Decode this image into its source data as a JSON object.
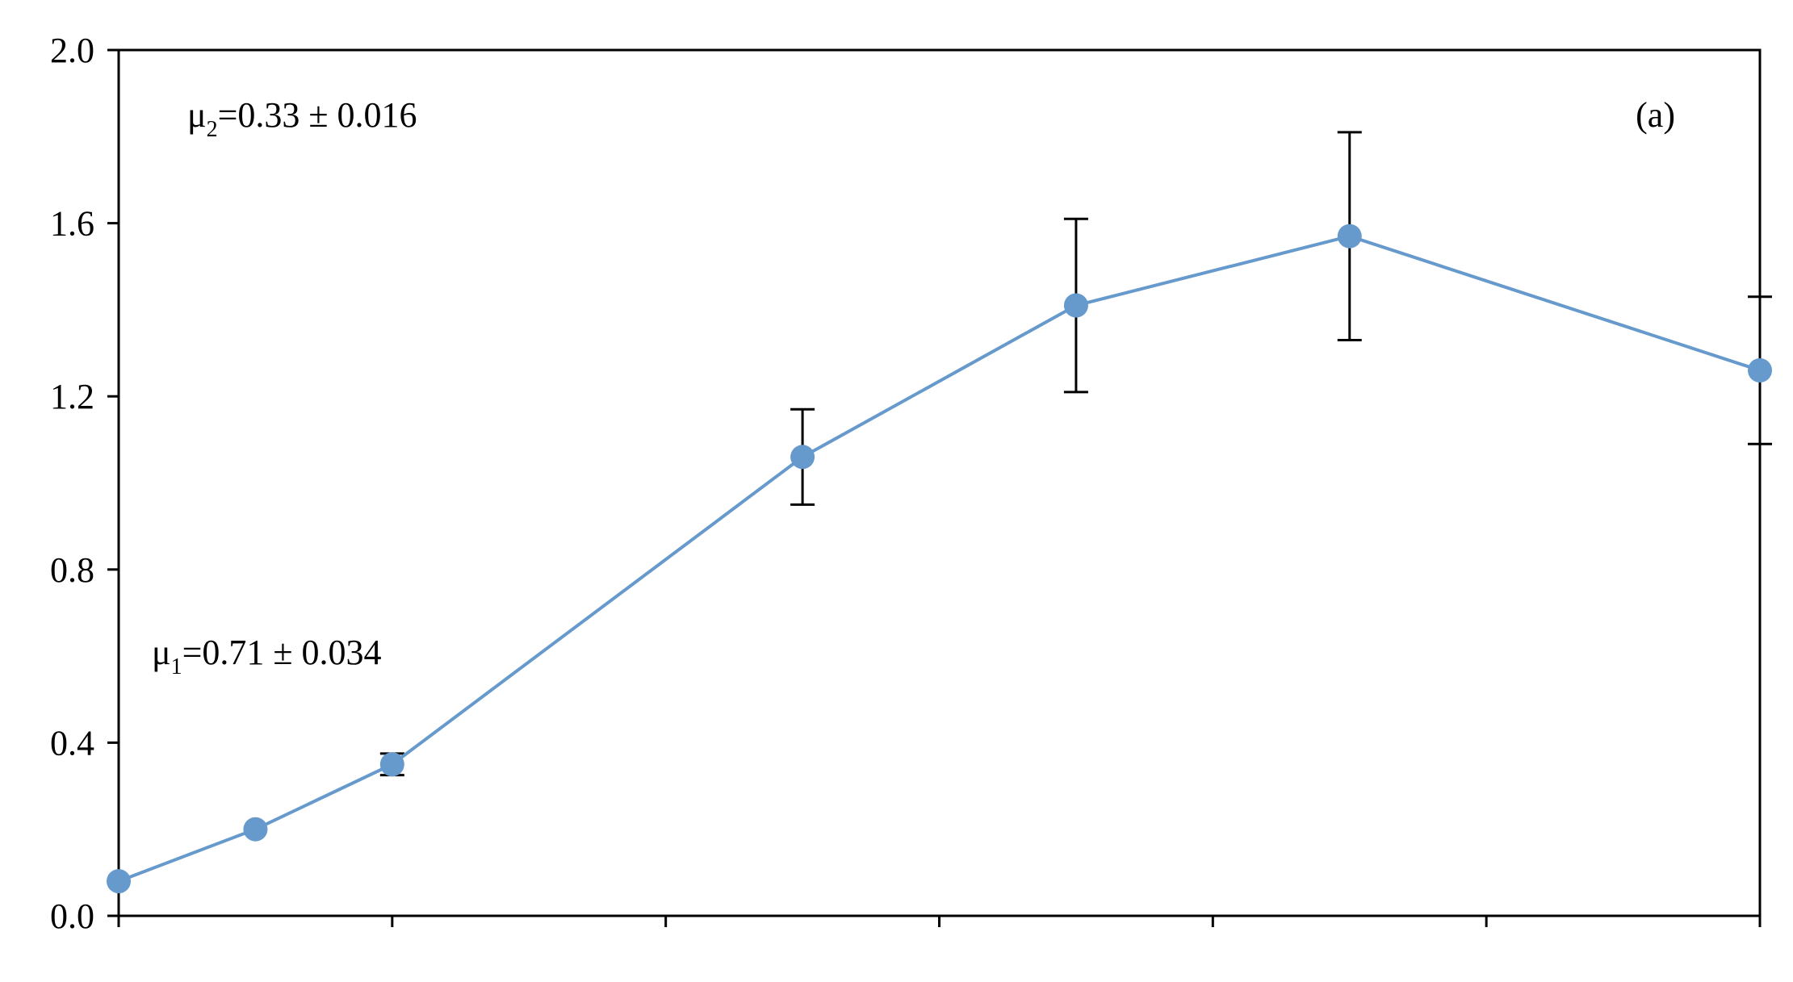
{
  "chart_data": {
    "type": "line",
    "title": "",
    "xlabel": "",
    "ylabel": "",
    "ylim": [
      0,
      2.0
    ],
    "yticks": [
      0.0,
      0.4,
      0.8,
      1.2,
      1.6,
      2.0
    ],
    "ytick_labels": [
      "0.0",
      "0.4",
      "0.8",
      "1.2",
      "1.6",
      "2.0"
    ],
    "xlim": [
      0,
      12
    ],
    "xticks": [
      0,
      2,
      4,
      6,
      8,
      10,
      12
    ],
    "grid": false,
    "legend": "none",
    "series": [
      {
        "x": [
          0,
          1,
          2,
          5,
          7,
          9,
          12
        ],
        "y": [
          0.08,
          0.2,
          0.35,
          1.06,
          1.41,
          1.57,
          1.26
        ],
        "error": [
          0.0,
          0.0,
          0.025,
          0.11,
          0.2,
          0.24,
          0.17
        ],
        "color": "#6699cc",
        "marker": "circle"
      }
    ],
    "annotations": {
      "mu2": {
        "symbol": "μ",
        "subscript": "2",
        "text": "=0.33 ± 0.016"
      },
      "mu1": {
        "symbol": "μ",
        "subscript": "1",
        "text": "=0.71 ± 0.034"
      },
      "panel": "(a)"
    }
  }
}
